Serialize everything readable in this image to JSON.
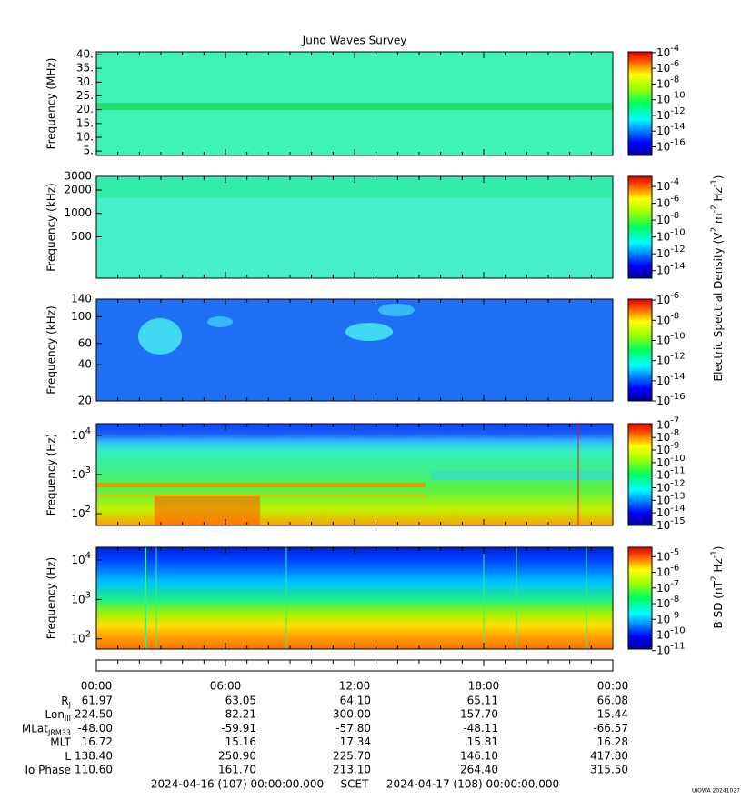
{
  "title": "Juno Waves Survey",
  "e_label": [
    {
      "text": "Electric Spectral Density (V"
    },
    {
      "sup": "2"
    },
    {
      "text": " m"
    },
    {
      "sup": "-2"
    },
    {
      "text": " Hz"
    },
    {
      "sup": "-1"
    },
    {
      "text": ")"
    }
  ],
  "b_label": [
    {
      "text": "B SD (nT"
    },
    {
      "sup": "2"
    },
    {
      "text": " Hz"
    },
    {
      "sup": "-1"
    },
    {
      "text": ")"
    }
  ],
  "panels": [
    {
      "ylabel": "Frequency (MHz)",
      "scale": "linear",
      "ylim": [
        3.4,
        41
      ],
      "yticks": [
        {
          "value": 40,
          "label": "40."
        },
        {
          "value": 35,
          "label": "35."
        },
        {
          "value": 30,
          "label": "30."
        },
        {
          "value": 25,
          "label": "25."
        },
        {
          "value": 20,
          "label": "20."
        },
        {
          "value": 15,
          "label": "15."
        },
        {
          "value": 10,
          "label": "10."
        },
        {
          "value": 5,
          "label": "5."
        }
      ],
      "clim": [
        -17.1,
        -3.9
      ],
      "cticks": [
        {
          "base": "10",
          "exp": -4
        },
        {
          "base": "10",
          "exp": -6
        },
        {
          "base": "10",
          "exp": -8
        },
        {
          "base": "10",
          "exp": -10
        },
        {
          "base": "10",
          "exp": -12
        },
        {
          "base": "10",
          "exp": -14
        },
        {
          "base": "10",
          "exp": -16
        }
      ]
    },
    {
      "ylabel": "Frequency (kHz)",
      "scale": "log",
      "ylim": [
        146,
        3000
      ],
      "yticks": [
        3000,
        2000,
        1000,
        500
      ],
      "clim": [
        -14.9,
        -2.8
      ],
      "cticks": [
        {
          "base": "10",
          "exp": -4
        },
        {
          "base": "10",
          "exp": -6
        },
        {
          "base": "10",
          "exp": -8
        },
        {
          "base": "10",
          "exp": -10
        },
        {
          "base": "10",
          "exp": -12
        },
        {
          "base": "10",
          "exp": -14
        }
      ]
    },
    {
      "ylabel": "Frequency (kHz)",
      "scale": "log",
      "ylim": [
        20,
        140
      ],
      "yticks": [
        140,
        100,
        60,
        40,
        20
      ],
      "clim": [
        -16,
        -5.9
      ],
      "cticks": [
        {
          "base": "10",
          "exp": -6
        },
        {
          "base": "10",
          "exp": -8
        },
        {
          "base": "10",
          "exp": -10
        },
        {
          "base": "10",
          "exp": -12
        },
        {
          "base": "10",
          "exp": -14
        },
        {
          "base": "10",
          "exp": -16
        }
      ]
    },
    {
      "ylabel": "Frequency (Hz)",
      "scale": "log",
      "ylim": [
        50,
        20000
      ],
      "yticks": [
        {
          "base": "10",
          "exp": 4
        },
        {
          "base": "10",
          "exp": 3
        },
        {
          "base": "10",
          "exp": 2
        }
      ],
      "clim": [
        -15,
        -6.9
      ],
      "cticks": [
        {
          "base": "10",
          "exp": -7
        },
        {
          "base": "10",
          "exp": -8
        },
        {
          "base": "10",
          "exp": -9
        },
        {
          "base": "10",
          "exp": -10
        },
        {
          "base": "10",
          "exp": -11
        },
        {
          "base": "10",
          "exp": -12
        },
        {
          "base": "10",
          "exp": -13
        },
        {
          "base": "10",
          "exp": -14
        },
        {
          "base": "10",
          "exp": -15
        }
      ]
    },
    {
      "ylabel": "Frequency (Hz)",
      "scale": "log",
      "ylim": [
        55,
        21000
      ],
      "yticks": [
        {
          "base": "10",
          "exp": 4
        },
        {
          "base": "10",
          "exp": 3
        },
        {
          "base": "10",
          "exp": 2
        }
      ],
      "clim": [
        -10.9,
        -4.4
      ],
      "cticks": [
        {
          "base": "10",
          "exp": -5
        },
        {
          "base": "10",
          "exp": -6
        },
        {
          "base": "10",
          "exp": -7
        },
        {
          "base": "10",
          "exp": -8
        },
        {
          "base": "10",
          "exp": -9
        },
        {
          "base": "10",
          "exp": -10
        },
        {
          "base": "10",
          "exp": -11
        }
      ]
    }
  ],
  "ephemeris": {
    "times": [
      "00:00",
      "06:00",
      "12:00",
      "18:00",
      "00:00"
    ],
    "rows": [
      {
        "label": [
          {
            "text": "R"
          },
          {
            "sub": "J"
          }
        ],
        "values": [
          "61.97",
          "63.05",
          "64.10",
          "65.11",
          "66.08"
        ]
      },
      {
        "label": [
          {
            "text": "Lon"
          },
          {
            "sub": "III"
          }
        ],
        "values": [
          "224.50",
          "82.21",
          "300.00",
          "157.70",
          "15.44"
        ]
      },
      {
        "label": [
          {
            "text": "MLat"
          },
          {
            "sub": "JRM33"
          }
        ],
        "values": [
          "-48.00",
          "-59.91",
          "-57.80",
          "-48.11",
          "-66.57"
        ]
      },
      {
        "label": [
          {
            "text": "MLT"
          }
        ],
        "values": [
          "16.72",
          "15.16",
          "17.34",
          "15.81",
          "16.28"
        ]
      },
      {
        "label": [
          {
            "text": "L"
          }
        ],
        "values": [
          "138.40",
          "250.90",
          "225.70",
          "146.10",
          "417.80"
        ]
      },
      {
        "label": [
          {
            "text": "Io Phase"
          }
        ],
        "values": [
          "110.60",
          "161.70",
          "213.10",
          "264.40",
          "315.50"
        ]
      }
    ]
  },
  "footer": {
    "start": "2024-04-16 (107) 00:00:00.000",
    "scet": "SCET",
    "end": "2024-04-17 (108) 00:00:00.000",
    "credit": "UIOWA 20241027"
  }
}
